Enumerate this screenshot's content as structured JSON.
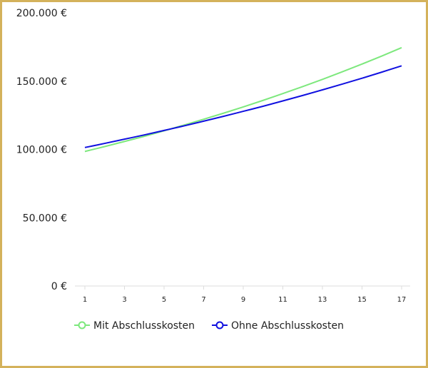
{
  "colors": {
    "border": "#d4b25b",
    "series_mit": "#7de87d",
    "series_ohne": "#1010e0",
    "axis": "#dddddd",
    "text": "#222222"
  },
  "chart_data": {
    "type": "line",
    "title": "",
    "xlabel": "",
    "ylabel": "",
    "x": [
      1,
      2,
      3,
      4,
      5,
      6,
      7,
      8,
      9,
      10,
      11,
      12,
      13,
      14,
      15,
      16,
      17
    ],
    "x_tick_labels": [
      "1",
      "3",
      "5",
      "7",
      "9",
      "11",
      "13",
      "15",
      "17"
    ],
    "y_tick_labels": [
      "0 €",
      "50.000 €",
      "100.000 €",
      "150.000 €",
      "200.000 €"
    ],
    "y_ticks": [
      0,
      50000,
      100000,
      150000,
      200000
    ],
    "ylim": [
      0,
      200000
    ],
    "grid": false,
    "legend_position": "bottom",
    "series": [
      {
        "name": "Mit Abschlusskosten",
        "color": "#7de87d",
        "values": [
          98500,
          102100,
          105800,
          109600,
          113600,
          117800,
          122100,
          126500,
          131100,
          135900,
          140900,
          146000,
          151300,
          156800,
          162500,
          168400,
          174500
        ]
      },
      {
        "name": "Ohne Abschlusskosten",
        "color": "#1010e0",
        "values": [
          101400,
          104400,
          107500,
          110600,
          113900,
          117200,
          120700,
          124200,
          127900,
          131600,
          135500,
          139500,
          143600,
          147800,
          152100,
          156600,
          161200
        ]
      }
    ]
  }
}
